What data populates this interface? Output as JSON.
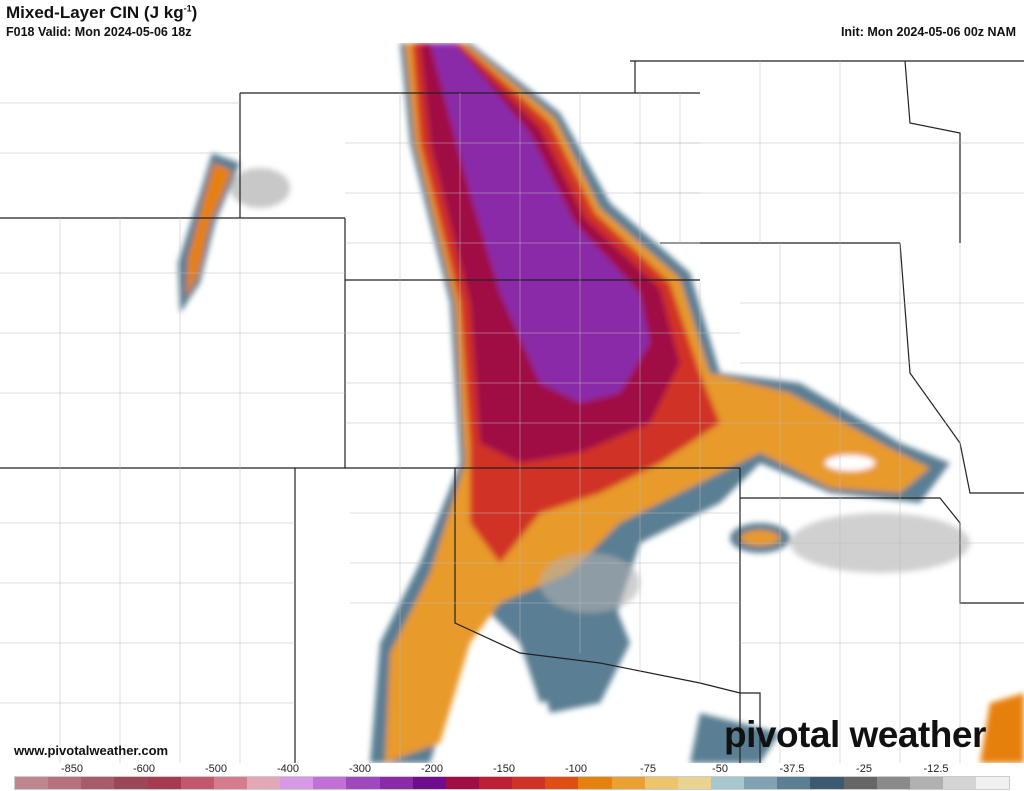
{
  "header": {
    "title": "Mixed-Layer CIN (J kg",
    "title_sup": "-1",
    "title_close": ")",
    "valid": "F018 Valid: Mon 2024-05-06 18z",
    "init": "Init: Mon 2024-05-06 00z NAM"
  },
  "footer": {
    "website": "www.pivotalweather.com",
    "logo": "pivotal weather"
  },
  "colorbar": {
    "labels": [
      "-850",
      "-600",
      "-500",
      "-400",
      "-300",
      "-200",
      "-150",
      "-100",
      "-75",
      "-50",
      "-37.5",
      "-25",
      "-12.5"
    ],
    "colors": [
      "#c0868f",
      "#b5717d",
      "#a85c6b",
      "#9b4757",
      "#a63a4f",
      "#c4576c",
      "#d57d8f",
      "#e4a7b5",
      "#d898e6",
      "#c070d6",
      "#a048be",
      "#8a2aa8",
      "#6e0d8e",
      "#a00e45",
      "#bf1f36",
      "#d13227",
      "#df4f14",
      "#e6800f",
      "#eba032",
      "#edc46a",
      "#ead390",
      "#a7c7cf",
      "#7fa3b2",
      "#5a7e93",
      "#3d5a73",
      "#666666",
      "#8a8a8a",
      "#b0b0b0",
      "#d4d4d4",
      "#f0f0f0"
    ]
  }
}
